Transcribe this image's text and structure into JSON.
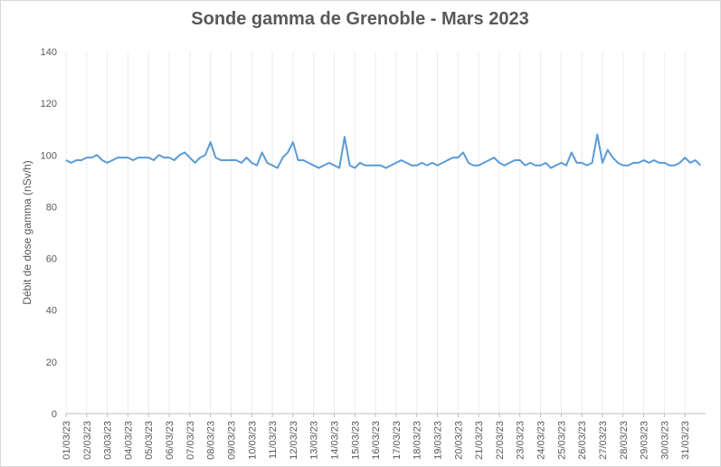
{
  "chart_data": {
    "type": "line",
    "title": "Sonde gamma de Grenoble - Mars 2023",
    "y_label": "Débit de dose gamma (nSv/h)",
    "categories": [
      "01/03/23",
      null,
      null,
      null,
      "02/03/23",
      null,
      null,
      null,
      "03/03/23",
      null,
      null,
      null,
      "04/03/23",
      null,
      null,
      null,
      "05/03/23",
      null,
      null,
      null,
      "06/03/23",
      null,
      null,
      null,
      "07/03/23",
      null,
      null,
      null,
      "08/03/23",
      null,
      null,
      null,
      "09/03/23",
      null,
      null,
      null,
      "10/03/23",
      null,
      null,
      null,
      "11/03/23",
      null,
      null,
      null,
      "12/03/23",
      null,
      null,
      null,
      "13/03/23",
      null,
      null,
      null,
      "14/03/23",
      null,
      null,
      null,
      "15/03/23",
      null,
      null,
      null,
      "16/03/23",
      null,
      null,
      null,
      "17/03/23",
      null,
      null,
      null,
      "18/03/23",
      null,
      null,
      null,
      "19/03/23",
      null,
      null,
      null,
      "20/03/23",
      null,
      null,
      null,
      "21/03/23",
      null,
      null,
      null,
      "22/03/23",
      null,
      null,
      null,
      "23/03/23",
      null,
      null,
      null,
      "24/03/23",
      null,
      null,
      null,
      "25/03/23",
      null,
      null,
      null,
      "26/03/23",
      null,
      null,
      null,
      "27/03/23",
      null,
      null,
      null,
      "28/03/23",
      null,
      null,
      null,
      "29/03/23",
      null,
      null,
      null,
      "30/03/23",
      null,
      null,
      null,
      "31/03/23",
      null,
      null,
      null
    ],
    "series": [
      {
        "name": "Débit de dose gamma",
        "color": "#5b9bd5",
        "values": [
          98,
          97,
          98,
          98,
          99,
          99,
          100,
          98,
          97,
          98,
          99,
          99,
          99,
          98,
          99,
          99,
          99,
          98,
          100,
          99,
          99,
          98,
          100,
          101,
          99,
          97,
          99,
          100,
          105,
          99,
          98,
          98,
          98,
          98,
          97,
          99,
          97,
          96,
          101,
          97,
          96,
          95,
          99,
          101,
          105,
          98,
          98,
          97,
          96,
          95,
          96,
          97,
          96,
          95,
          107,
          96,
          95,
          97,
          96,
          96,
          96,
          96,
          95,
          96,
          97,
          98,
          97,
          96,
          96,
          97,
          96,
          97,
          96,
          97,
          98,
          99,
          99,
          101,
          97,
          96,
          96,
          97,
          98,
          99,
          97,
          96,
          97,
          98,
          98,
          96,
          97,
          96,
          96,
          97,
          95,
          96,
          97,
          96,
          101,
          97,
          97,
          96,
          97,
          108,
          97,
          102,
          99,
          97,
          96,
          96,
          97,
          97,
          98,
          97,
          98,
          97,
          97,
          96,
          96,
          97,
          99,
          97,
          98,
          96
        ]
      }
    ],
    "ylim": [
      0,
      140
    ],
    "yticks": [
      0,
      20,
      40,
      60,
      80,
      100,
      120,
      140
    ],
    "grid": true
  }
}
